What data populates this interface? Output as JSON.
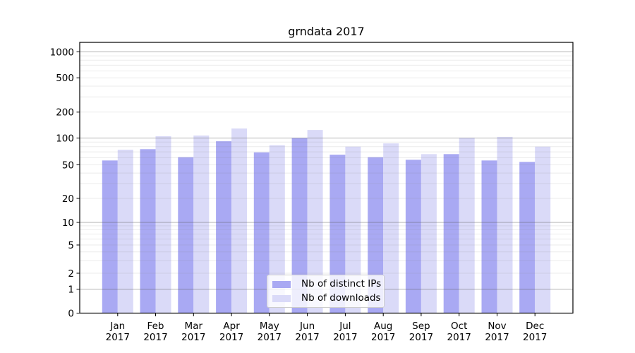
{
  "title": "grndata 2017",
  "chart_data": {
    "type": "bar",
    "title": "grndata 2017",
    "categories": [
      "Jan 2017",
      "Feb 2017",
      "Mar 2017",
      "Apr 2017",
      "May 2017",
      "Jun 2017",
      "Jul 2017",
      "Aug 2017",
      "Sep 2017",
      "Oct 2017",
      "Nov 2017",
      "Dec 2017"
    ],
    "x_tick_months": [
      "Jan",
      "Feb",
      "Mar",
      "Apr",
      "May",
      "Jun",
      "Jul",
      "Aug",
      "Sep",
      "Oct",
      "Nov",
      "Dec"
    ],
    "x_tick_year": "2017",
    "series": [
      {
        "name": "Nb of distinct IPs",
        "key": "distinct-ips",
        "color": "#a9a9f3",
        "values": [
          56,
          75,
          61,
          92,
          69,
          100,
          65,
          61,
          57,
          66,
          56,
          54
        ]
      },
      {
        "name": "Nb of downloads",
        "key": "downloads",
        "color": "#dadaf8",
        "values": [
          74,
          105,
          107,
          129,
          83,
          124,
          80,
          87,
          66,
          101,
          103,
          80
        ]
      }
    ],
    "y_axis": {
      "scale": "symlog",
      "ticks": [
        0,
        1,
        2,
        5,
        10,
        20,
        50,
        100,
        200,
        500,
        1000
      ],
      "major_grid_values": [
        1,
        10,
        100,
        1000
      ],
      "minor_grid_values": [
        2,
        3,
        4,
        5,
        6,
        7,
        8,
        9,
        20,
        30,
        40,
        50,
        60,
        70,
        80,
        90,
        200,
        300,
        400,
        500,
        600,
        700,
        800,
        900
      ],
      "ylim": [
        0,
        1300
      ]
    },
    "grid": true,
    "legend_position": "lower center",
    "colors": {
      "bar_distinct_ips": "#a9a9f3",
      "bar_downloads": "#dadaf8",
      "major_gridline": "#b3b3b3",
      "minor_gridline": "#e8e8e8",
      "axis": "#000000"
    }
  }
}
